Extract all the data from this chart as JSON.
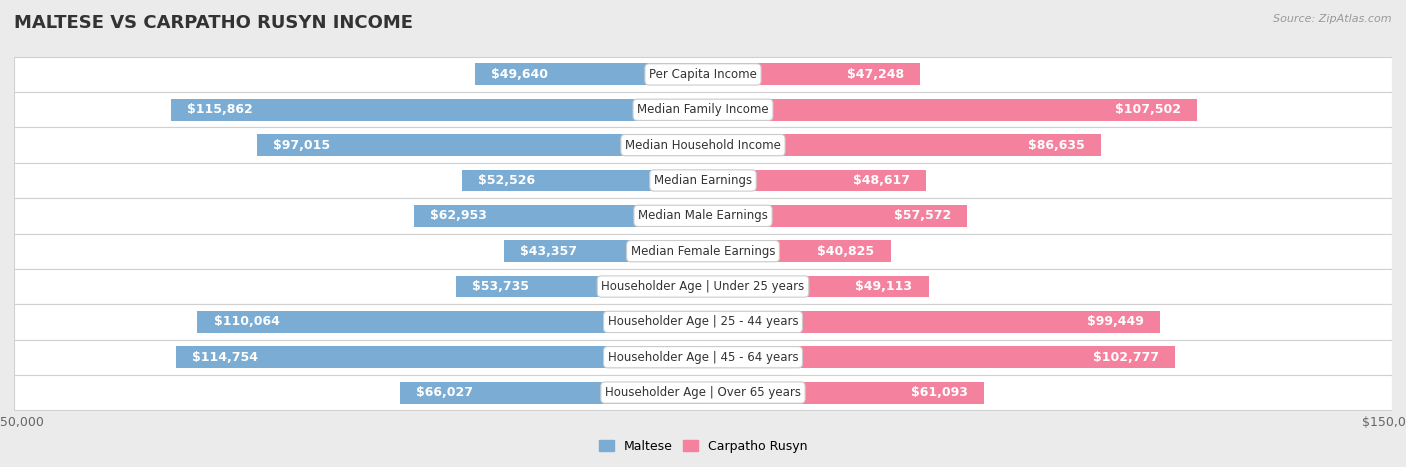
{
  "title": "MALTESE VS CARPATHO RUSYN INCOME",
  "source": "Source: ZipAtlas.com",
  "categories": [
    "Per Capita Income",
    "Median Family Income",
    "Median Household Income",
    "Median Earnings",
    "Median Male Earnings",
    "Median Female Earnings",
    "Householder Age | Under 25 years",
    "Householder Age | 25 - 44 years",
    "Householder Age | 45 - 64 years",
    "Householder Age | Over 65 years"
  ],
  "maltese_values": [
    49640,
    115862,
    97015,
    52526,
    62953,
    43357,
    53735,
    110064,
    114754,
    66027
  ],
  "carpatho_values": [
    47248,
    107502,
    86635,
    48617,
    57572,
    40825,
    49113,
    99449,
    102777,
    61093
  ],
  "maltese_labels": [
    "$49,640",
    "$115,862",
    "$97,015",
    "$52,526",
    "$62,953",
    "$43,357",
    "$53,735",
    "$110,064",
    "$114,754",
    "$66,027"
  ],
  "carpatho_labels": [
    "$47,248",
    "$107,502",
    "$86,635",
    "$48,617",
    "$57,572",
    "$40,825",
    "$49,113",
    "$99,449",
    "$102,777",
    "$61,093"
  ],
  "maltese_color": "#7badd4",
  "carpatho_color": "#f4829e",
  "label_color_inside": "#ffffff",
  "label_color_outside": "#888888",
  "axis_max": 150000,
  "bar_height": 0.62,
  "background_color": "#ebebeb",
  "row_bg_color": "#ffffff",
  "row_border_color": "#d0d0d0",
  "title_fontsize": 13,
  "label_fontsize": 9,
  "category_fontsize": 8.5,
  "legend_maltese": "Maltese",
  "legend_carpatho": "Carpatho Rusyn",
  "xlim": 150000,
  "inside_threshold": 15000
}
